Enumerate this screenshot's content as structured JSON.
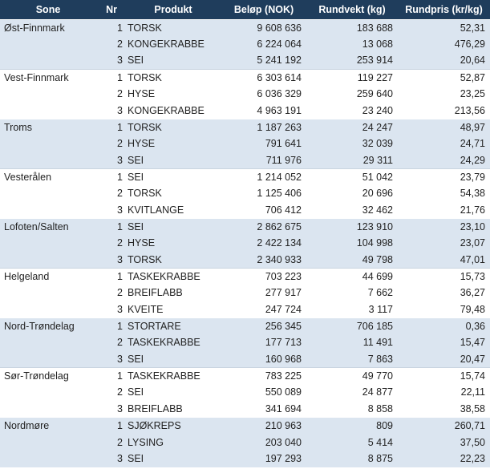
{
  "headers": {
    "sone": "Sone",
    "nr": "Nr",
    "produkt": "Produkt",
    "belop": "Beløp (NOK)",
    "rundvekt": "Rundvekt (kg)",
    "rundpris": "Rundpris (kr/kg)"
  },
  "groups": [
    {
      "sone": "Øst-Finnmark",
      "shaded": true,
      "rows": [
        {
          "nr": "1",
          "produkt": "TORSK",
          "belop": "9 608 636",
          "rundvekt": "183 688",
          "rundpris": "52,31"
        },
        {
          "nr": "2",
          "produkt": "KONGEKRABBE",
          "belop": "6 224 064",
          "rundvekt": "13 068",
          "rundpris": "476,29"
        },
        {
          "nr": "3",
          "produkt": "SEI",
          "belop": "5 241 192",
          "rundvekt": "253 914",
          "rundpris": "20,64"
        }
      ]
    },
    {
      "sone": "Vest-Finnmark",
      "shaded": false,
      "rows": [
        {
          "nr": "1",
          "produkt": "TORSK",
          "belop": "6 303 614",
          "rundvekt": "119 227",
          "rundpris": "52,87"
        },
        {
          "nr": "2",
          "produkt": "HYSE",
          "belop": "6 036 329",
          "rundvekt": "259 640",
          "rundpris": "23,25"
        },
        {
          "nr": "3",
          "produkt": "KONGEKRABBE",
          "belop": "4 963 191",
          "rundvekt": "23 240",
          "rundpris": "213,56"
        }
      ]
    },
    {
      "sone": "Troms",
      "shaded": true,
      "rows": [
        {
          "nr": "1",
          "produkt": "TORSK",
          "belop": "1 187 263",
          "rundvekt": "24 247",
          "rundpris": "48,97"
        },
        {
          "nr": "2",
          "produkt": "HYSE",
          "belop": "791 641",
          "rundvekt": "32 039",
          "rundpris": "24,71"
        },
        {
          "nr": "3",
          "produkt": "SEI",
          "belop": "711 976",
          "rundvekt": "29 311",
          "rundpris": "24,29"
        }
      ]
    },
    {
      "sone": "Vesterålen",
      "shaded": false,
      "rows": [
        {
          "nr": "1",
          "produkt": "SEI",
          "belop": "1 214 052",
          "rundvekt": "51 042",
          "rundpris": "23,79"
        },
        {
          "nr": "2",
          "produkt": "TORSK",
          "belop": "1 125 406",
          "rundvekt": "20 696",
          "rundpris": "54,38"
        },
        {
          "nr": "3",
          "produkt": "KVITLANGE",
          "belop": "706 412",
          "rundvekt": "32 462",
          "rundpris": "21,76"
        }
      ]
    },
    {
      "sone": "Lofoten/Salten",
      "shaded": true,
      "rows": [
        {
          "nr": "1",
          "produkt": "SEI",
          "belop": "2 862 675",
          "rundvekt": "123 910",
          "rundpris": "23,10"
        },
        {
          "nr": "2",
          "produkt": "HYSE",
          "belop": "2 422 134",
          "rundvekt": "104 998",
          "rundpris": "23,07"
        },
        {
          "nr": "3",
          "produkt": "TORSK",
          "belop": "2 340 933",
          "rundvekt": "49 798",
          "rundpris": "47,01"
        }
      ]
    },
    {
      "sone": "Helgeland",
      "shaded": false,
      "rows": [
        {
          "nr": "1",
          "produkt": "TASKEKRABBE",
          "belop": "703 223",
          "rundvekt": "44 699",
          "rundpris": "15,73"
        },
        {
          "nr": "2",
          "produkt": "BREIFLABB",
          "belop": "277 917",
          "rundvekt": "7 662",
          "rundpris": "36,27"
        },
        {
          "nr": "3",
          "produkt": "KVEITE",
          "belop": "247 724",
          "rundvekt": "3 117",
          "rundpris": "79,48"
        }
      ]
    },
    {
      "sone": "Nord-Trøndelag",
      "shaded": true,
      "rows": [
        {
          "nr": "1",
          "produkt": "STORTARE",
          "belop": "256 345",
          "rundvekt": "706 185",
          "rundpris": "0,36"
        },
        {
          "nr": "2",
          "produkt": "TASKEKRABBE",
          "belop": "177 713",
          "rundvekt": "11 491",
          "rundpris": "15,47"
        },
        {
          "nr": "3",
          "produkt": "SEI",
          "belop": "160 968",
          "rundvekt": "7 863",
          "rundpris": "20,47"
        }
      ]
    },
    {
      "sone": "Sør-Trøndelag",
      "shaded": false,
      "rows": [
        {
          "nr": "1",
          "produkt": "TASKEKRABBE",
          "belop": "783 225",
          "rundvekt": "49 770",
          "rundpris": "15,74"
        },
        {
          "nr": "2",
          "produkt": "SEI",
          "belop": "550 089",
          "rundvekt": "24 877",
          "rundpris": "22,11"
        },
        {
          "nr": "3",
          "produkt": "BREIFLABB",
          "belop": "341 694",
          "rundvekt": "8 858",
          "rundpris": "38,58"
        }
      ]
    },
    {
      "sone": "Nordmøre",
      "shaded": true,
      "rows": [
        {
          "nr": "1",
          "produkt": "SJØKREPS",
          "belop": "210 963",
          "rundvekt": "809",
          "rundpris": "260,71"
        },
        {
          "nr": "2",
          "produkt": "LYSING",
          "belop": "203 040",
          "rundvekt": "5 414",
          "rundpris": "37,50"
        },
        {
          "nr": "3",
          "produkt": "SEI",
          "belop": "197 293",
          "rundvekt": "8 875",
          "rundpris": "22,23"
        }
      ]
    }
  ]
}
